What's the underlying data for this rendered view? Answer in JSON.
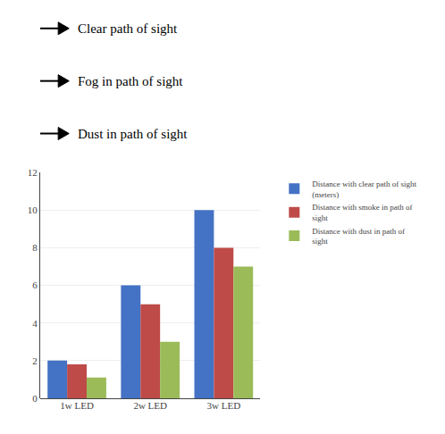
{
  "chart_data": {
    "type": "bar",
    "annotations": [
      "Clear path of sight",
      "Fog in path of sight",
      "Dust in path of sight"
    ],
    "categories": [
      "1w LED",
      "2w LED",
      "3w LED"
    ],
    "series": [
      {
        "name": "Distance with clear path of sight\n(meters)",
        "color": "#4472C4",
        "values": [
          2,
          6,
          10
        ]
      },
      {
        "name": "Distance with smoke in path of\nsight",
        "color": "#BE4B48",
        "values": [
          1.8,
          5,
          8
        ]
      },
      {
        "name": "Distance with dust in path of\nsight",
        "color": "#9BBB59",
        "values": [
          1.1,
          3,
          7
        ]
      }
    ],
    "ylim": [
      0,
      12
    ],
    "yticks": [
      0,
      2,
      4,
      6,
      8,
      10,
      12
    ],
    "grid": true,
    "legend": "right"
  }
}
